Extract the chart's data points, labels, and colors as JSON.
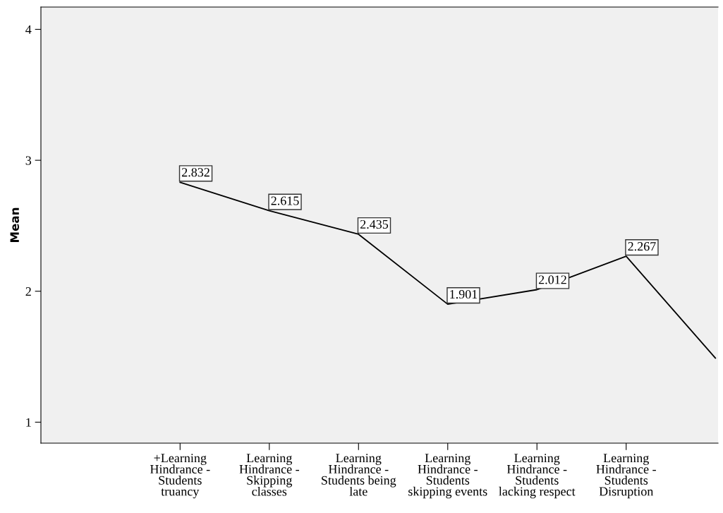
{
  "chart_data": {
    "type": "line",
    "ylabel": "Mean",
    "categories": [
      "+Learning Hindrance - Students truancy",
      "Learning Hindrance - Skipping classes",
      "Learning Hindrance - Students being late",
      "Learning Hindrance - Students skipping events",
      "Learning Hindrance - Students lacking respect",
      "Learning Hindrance - Students Disruption",
      null
    ],
    "series": [
      {
        "color": "#000000",
        "values": [
          2.832,
          2.615,
          2.435,
          1.901,
          2.012,
          2.267,
          1.49
        ],
        "value_labels": [
          "2.832",
          "2.615",
          "2.435",
          "1.901",
          "2.012",
          "2.267",
          null
        ]
      }
    ],
    "ylim": [
      0.84,
      4.17
    ],
    "yticks": [
      1,
      2,
      3,
      4
    ],
    "grid": false,
    "marker": "none",
    "line_style": "solid"
  }
}
